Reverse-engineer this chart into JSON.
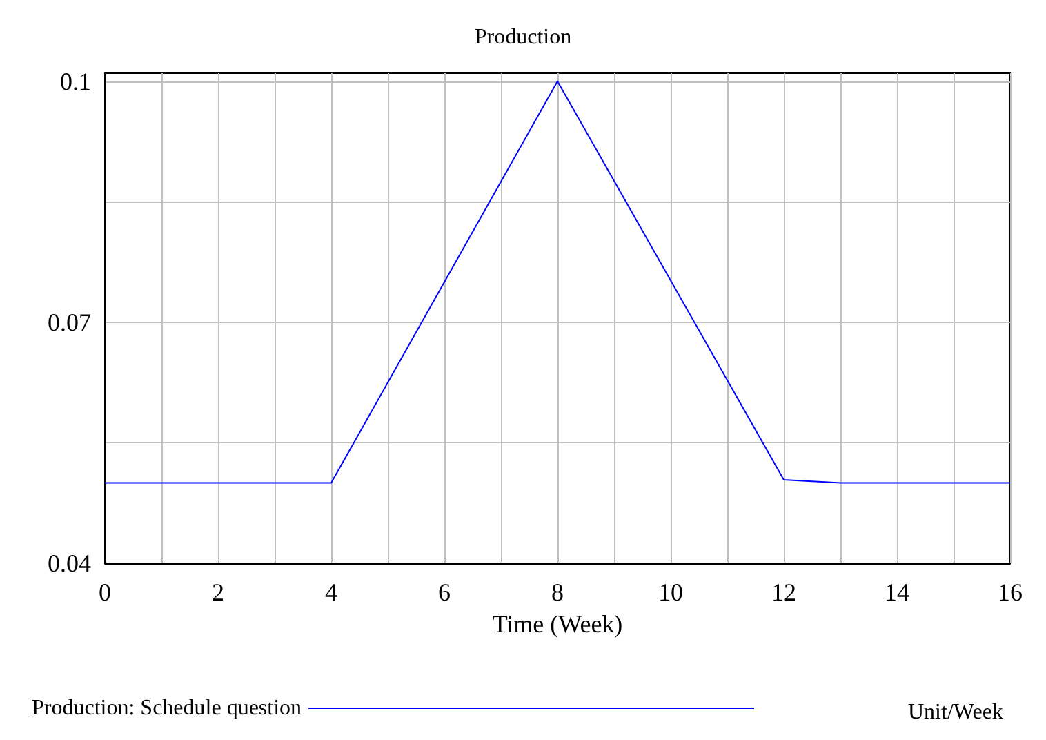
{
  "chart_data": {
    "type": "line",
    "title": "Production",
    "xlabel": "Time (Week)",
    "x": [
      0,
      4,
      8,
      12,
      13,
      16
    ],
    "series": [
      {
        "name": "Production: Schedule question",
        "color": "#0000ff",
        "values": [
          0.05,
          0.05,
          0.1,
          0.0504,
          0.05,
          0.05
        ]
      }
    ],
    "xlim": [
      0,
      16
    ],
    "xticks": [
      0,
      {
        "value": 1,
        "label": null
      },
      2,
      {
        "value": 3,
        "label": null
      },
      4,
      {
        "value": 5,
        "label": null
      },
      6,
      {
        "value": 7,
        "label": null
      },
      8,
      {
        "value": 9,
        "label": null
      },
      10,
      {
        "value": 11,
        "label": null
      },
      12,
      {
        "value": 13,
        "label": null
      },
      14,
      {
        "value": 15,
        "label": null
      },
      16
    ],
    "ylim": [
      0.04,
      0.101
    ],
    "yticks": [
      0.04,
      {
        "value": 0.055,
        "label": null
      },
      0.07,
      {
        "value": 0.085,
        "label": null
      },
      0.1
    ],
    "grid": true,
    "legend": "bottom",
    "marker": "none",
    "line_style": "solid",
    "annotations": [
      "Unit/Week"
    ]
  }
}
